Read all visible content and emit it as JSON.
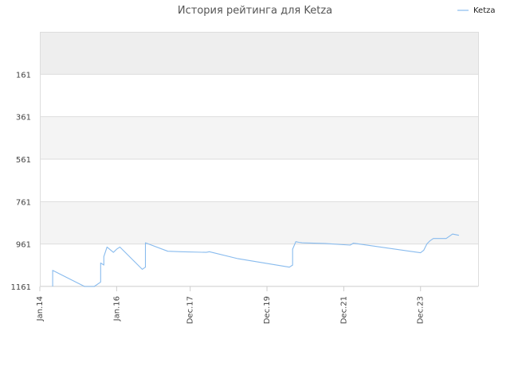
{
  "chart_data": {
    "type": "line",
    "title": "История рейтинга для Ketza",
    "xlabel": "",
    "ylabel": "",
    "y_inverted": true,
    "ylim": [
      1161,
      -39
    ],
    "y_ticks": [
      161,
      361,
      561,
      761,
      961,
      1161
    ],
    "x_ticks": [
      {
        "label": "Jan.14",
        "date": "2014-01"
      },
      {
        "label": "Jan.16",
        "date": "2016-01"
      },
      {
        "label": "Dec.17",
        "date": "2017-12"
      },
      {
        "label": "Dec.19",
        "date": "2019-12"
      },
      {
        "label": "Dec.21",
        "date": "2021-12"
      },
      {
        "label": "Dec.23",
        "date": "2023-12"
      }
    ],
    "grid": true,
    "legend_position": "top-right",
    "series": [
      {
        "name": "Ketza",
        "color": "#88bbee",
        "points": [
          {
            "date": "2014-05",
            "rank": 1161
          },
          {
            "date": "2014-05",
            "rank": 1120
          },
          {
            "date": "2014-05",
            "rank": 1085
          },
          {
            "date": "2015-03",
            "rank": 1161
          },
          {
            "date": "2015-06",
            "rank": 1161
          },
          {
            "date": "2015-08",
            "rank": 1140
          },
          {
            "date": "2015-08",
            "rank": 1050
          },
          {
            "date": "2015-09",
            "rank": 1060
          },
          {
            "date": "2015-09",
            "rank": 1020
          },
          {
            "date": "2015-10",
            "rank": 975
          },
          {
            "date": "2015-12",
            "rank": 1000
          },
          {
            "date": "2016-01",
            "rank": 985
          },
          {
            "date": "2016-02",
            "rank": 975
          },
          {
            "date": "2016-09",
            "rank": 1080
          },
          {
            "date": "2016-10",
            "rank": 1070
          },
          {
            "date": "2016-10",
            "rank": 955
          },
          {
            "date": "2017-05",
            "rank": 995
          },
          {
            "date": "2017-09",
            "rank": 997
          },
          {
            "date": "2018-05",
            "rank": 1000
          },
          {
            "date": "2018-06",
            "rank": 997
          },
          {
            "date": "2019-03",
            "rank": 1030
          },
          {
            "date": "2020-07",
            "rank": 1070
          },
          {
            "date": "2020-08",
            "rank": 1060
          },
          {
            "date": "2020-08",
            "rank": 985
          },
          {
            "date": "2020-09",
            "rank": 950
          },
          {
            "date": "2020-10",
            "rank": 953
          },
          {
            "date": "2020-11",
            "rank": 955
          },
          {
            "date": "2021-06",
            "rank": 958
          },
          {
            "date": "2022-02",
            "rank": 966
          },
          {
            "date": "2022-03",
            "rank": 957
          },
          {
            "date": "2023-12",
            "rank": 1002
          },
          {
            "date": "2024-01",
            "rank": 990
          },
          {
            "date": "2024-02",
            "rank": 960
          },
          {
            "date": "2024-03",
            "rank": 945
          },
          {
            "date": "2024-04",
            "rank": 935
          },
          {
            "date": "2024-08",
            "rank": 935
          },
          {
            "date": "2024-10",
            "rank": 914
          },
          {
            "date": "2024-12",
            "rank": 920
          }
        ]
      }
    ]
  }
}
